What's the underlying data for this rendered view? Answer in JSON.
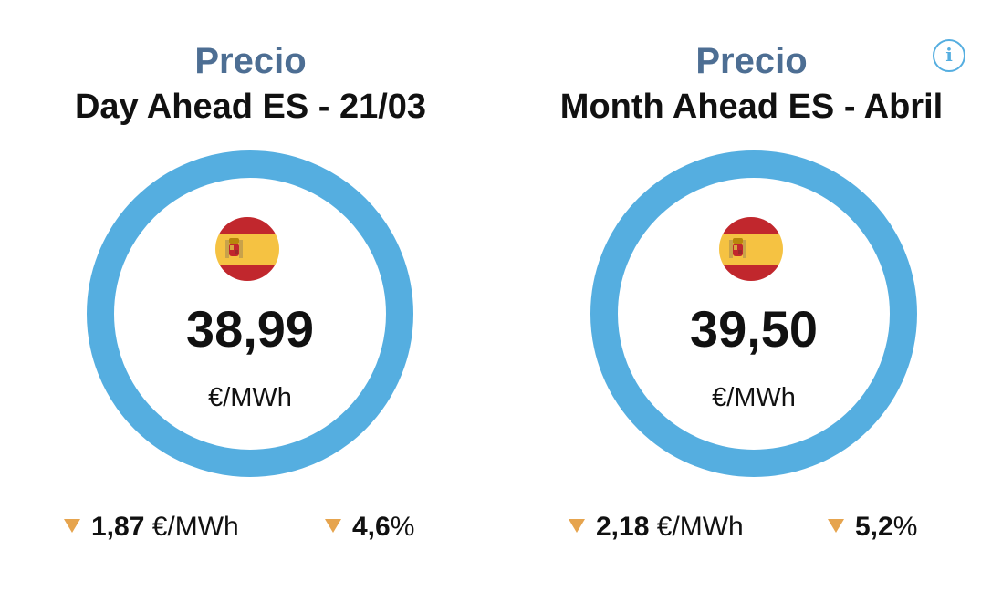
{
  "cards": [
    {
      "kicker": "Precio",
      "headline": "Day Ahead ES - 21/03",
      "flag_icon": "spain-flag-icon",
      "value": "38,99",
      "unit": "€/MWh",
      "change_abs": {
        "direction": "down",
        "value": "1,87",
        "unit": "€/MWh"
      },
      "change_pct": {
        "direction": "down",
        "value": "4,6",
        "unit": "%"
      }
    },
    {
      "kicker": "Precio",
      "headline": "Month Ahead ES - Abril",
      "flag_icon": "spain-flag-icon",
      "value": "39,50",
      "unit": "€/MWh",
      "change_abs": {
        "direction": "down",
        "value": "2,18",
        "unit": "€/MWh"
      },
      "change_pct": {
        "direction": "down",
        "value": "5,2",
        "unit": "%"
      }
    }
  ],
  "info_button": {
    "icon": "info-icon",
    "glyph": "i"
  },
  "colors": {
    "ring": "#55aee0",
    "kicker": "#4d6e93",
    "down_arrow": "#e6a44e",
    "flag_red": "#c1272d",
    "flag_yellow": "#f5c242"
  }
}
